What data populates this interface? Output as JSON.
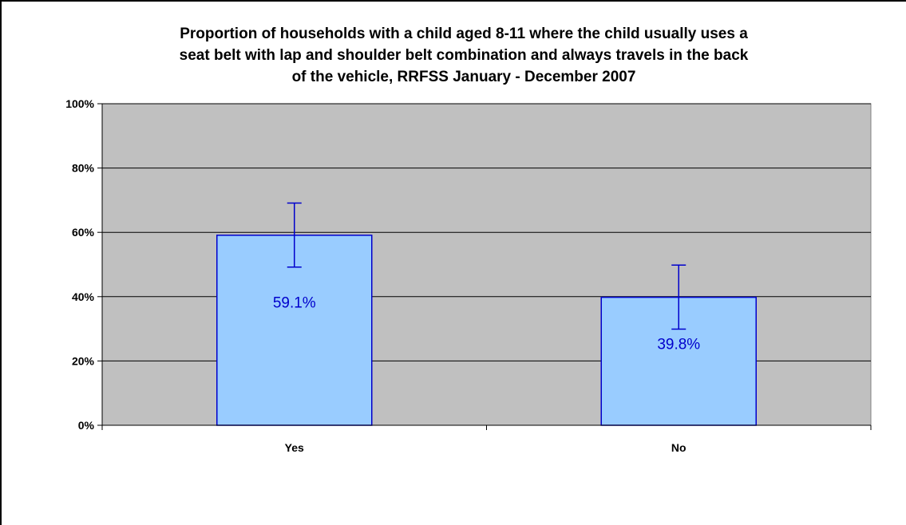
{
  "chart_data": {
    "type": "bar",
    "title_lines": [
      "Proportion of households with a child aged 8-11 where the child usually uses a",
      "seat belt with lap and shoulder belt combination and always travels in the back",
      "of the vehicle, RRFSS January - December 2007"
    ],
    "xlabel": "",
    "ylabel": "",
    "categories": [
      "Yes",
      "No"
    ],
    "values": [
      59.1,
      39.8
    ],
    "error_low": [
      49.2,
      29.9
    ],
    "error_high": [
      69.1,
      49.8
    ],
    "data_labels": [
      "59.1%",
      "39.8%"
    ],
    "y_ticks": [
      0,
      20,
      40,
      60,
      80,
      100
    ],
    "y_tick_labels": [
      "0%",
      "20%",
      "40%",
      "60%",
      "80%",
      "100%"
    ],
    "ylim": [
      0,
      100
    ],
    "grid": true,
    "legend": "none",
    "colors": {
      "plot_background": "#c0c0c0",
      "bar_fill": "#99ccff",
      "bar_stroke": "#0000cc",
      "error_bar": "#0000cc",
      "data_label": "#0000cc",
      "gridline": "#000000"
    }
  }
}
